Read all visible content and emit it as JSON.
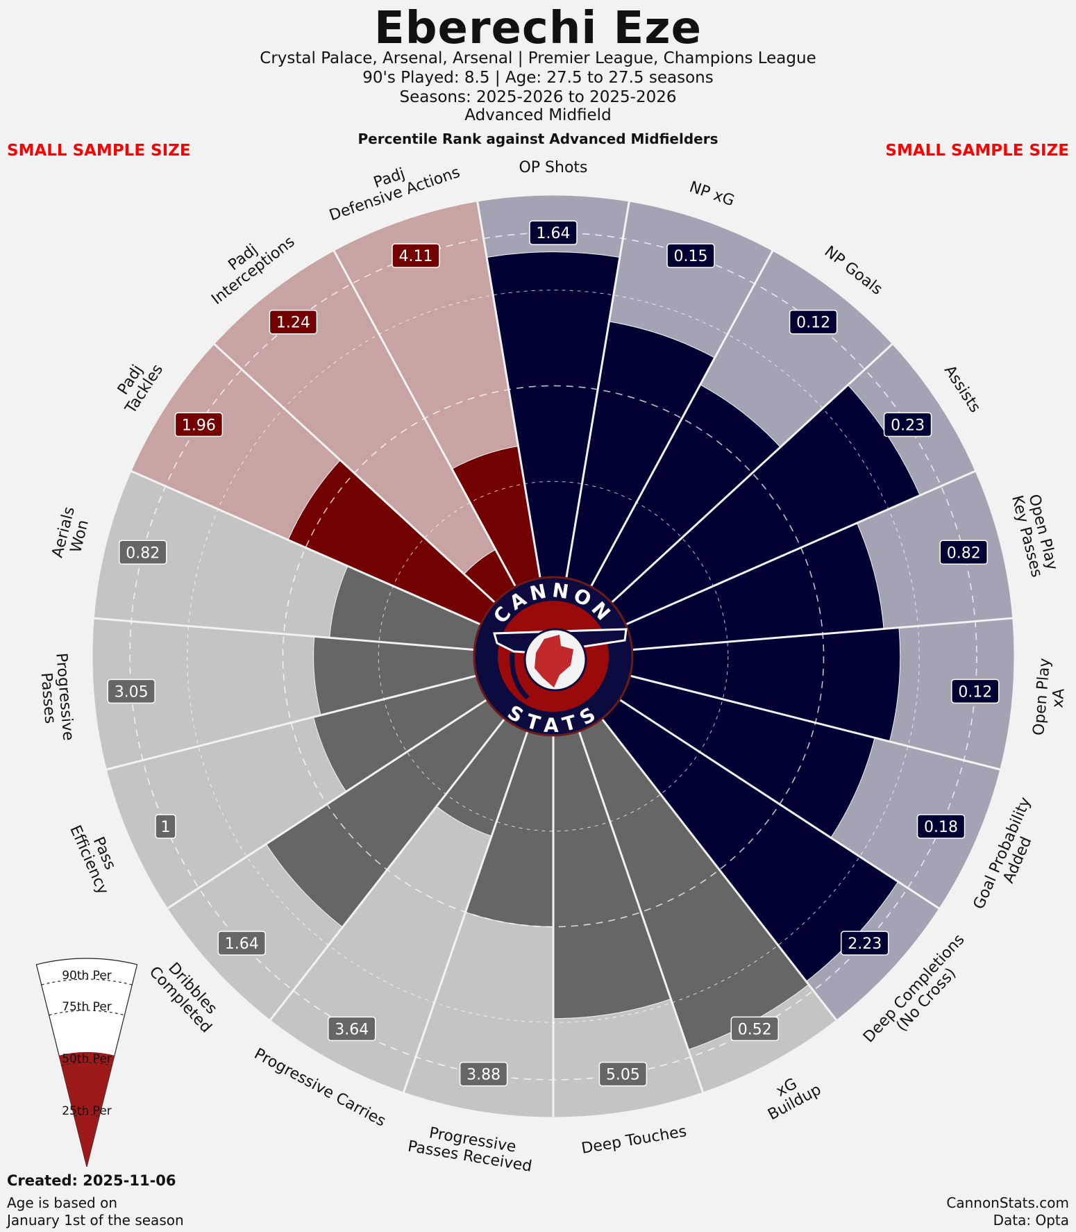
{
  "header": {
    "title": "Eberechi Eze",
    "line1": "Crystal Palace, Arsenal, Arsenal | Premier League, Champions League",
    "line2": "90's Played: 8.5 | Age: 27.5 to 27.5 seasons",
    "line3": "Seasons: 2025-2026 to 2025-2026",
    "line4": "Advanced Midfield",
    "subtitle": "Percentile Rank against Advanced Midfielders",
    "warning_left": "SMALL SAMPLE SIZE",
    "warning_right": "SMALL SAMPLE SIZE"
  },
  "footer": {
    "created": "Created: 2025-11-06",
    "age_note_1": "Age is based on",
    "age_note_2": "January 1st of the season",
    "site": "CannonStats.com",
    "data_source": "Data: Opta"
  },
  "logo": {
    "top": "CANNON",
    "bottom": "STATS"
  },
  "legend": {
    "labels": [
      "90th Per",
      "75th Per",
      "50th Per",
      "25th Per"
    ]
  },
  "colors": {
    "attack_dark": "#000033",
    "attack_light": "#a3a3b3",
    "defense_dark": "#730000",
    "defense_light": "#c7a3a3",
    "possession_dark": "#666666",
    "possession_light": "#c4c4c2",
    "logo_red": "#9b0a0a",
    "logo_navy": "#0b0b40",
    "legend_red": "#9e1a1a"
  },
  "chart_data": {
    "type": "radial-bar (pizza)",
    "title": "Percentile Rank against Advanced Midfielders",
    "range": [
      0,
      100
    ],
    "reference_rings": [
      25,
      50,
      75,
      90
    ],
    "metrics": [
      {
        "label": "OP Shots",
        "value": 1.64,
        "percentile": 85,
        "group": "attack"
      },
      {
        "label": "NP xG",
        "value": 0.15,
        "percentile": 68,
        "group": "attack"
      },
      {
        "label": "NP Goals",
        "value": 0.12,
        "percentile": 60,
        "group": "attack"
      },
      {
        "label": "Assists",
        "value": 0.23,
        "percentile": 84,
        "group": "attack"
      },
      {
        "label": "Open Play\nKey Passes",
        "value": 0.82,
        "percentile": 66,
        "group": "attack"
      },
      {
        "label": "Open Play\nxA",
        "value": 0.12,
        "percentile": 70,
        "group": "attack"
      },
      {
        "label": "Goal Probability\nAdded",
        "value": 0.18,
        "percentile": 66,
        "group": "attack"
      },
      {
        "label": "Deep Completions\n(No Cross)",
        "value": 2.23,
        "percentile": 87,
        "group": "attack"
      },
      {
        "label": "xG\nBuildup",
        "value": 0.52,
        "percentile": 88,
        "group": "possession"
      },
      {
        "label": "Deep Touches",
        "value": 5.05,
        "percentile": 74,
        "group": "possession"
      },
      {
        "label": "Progressive\nPasses Received",
        "value": 3.88,
        "percentile": 50,
        "group": "possession"
      },
      {
        "label": "Progressive Carries",
        "value": 3.64,
        "percentile": 29,
        "group": "possession"
      },
      {
        "label": "Dribbles\nCompleted",
        "value": 1.64,
        "percentile": 69,
        "group": "possession"
      },
      {
        "label": "Pass\nEfficiency",
        "value": 1.0,
        "percentile": 44,
        "group": "possession"
      },
      {
        "label": "Progressive\nPasses",
        "value": 3.05,
        "percentile": 42,
        "group": "possession"
      },
      {
        "label": "Aerials\nWon",
        "value": 0.82,
        "percentile": 38,
        "group": "possession"
      },
      {
        "label": "Padj\nTackles",
        "value": 1.96,
        "percentile": 55,
        "group": "defense"
      },
      {
        "label": "Padj\nInterceptions",
        "value": 1.24,
        "percentile": 11,
        "group": "defense"
      },
      {
        "label": "Padj\nDefensive Actions",
        "value": 4.11,
        "percentile": 35,
        "group": "defense"
      }
    ]
  }
}
